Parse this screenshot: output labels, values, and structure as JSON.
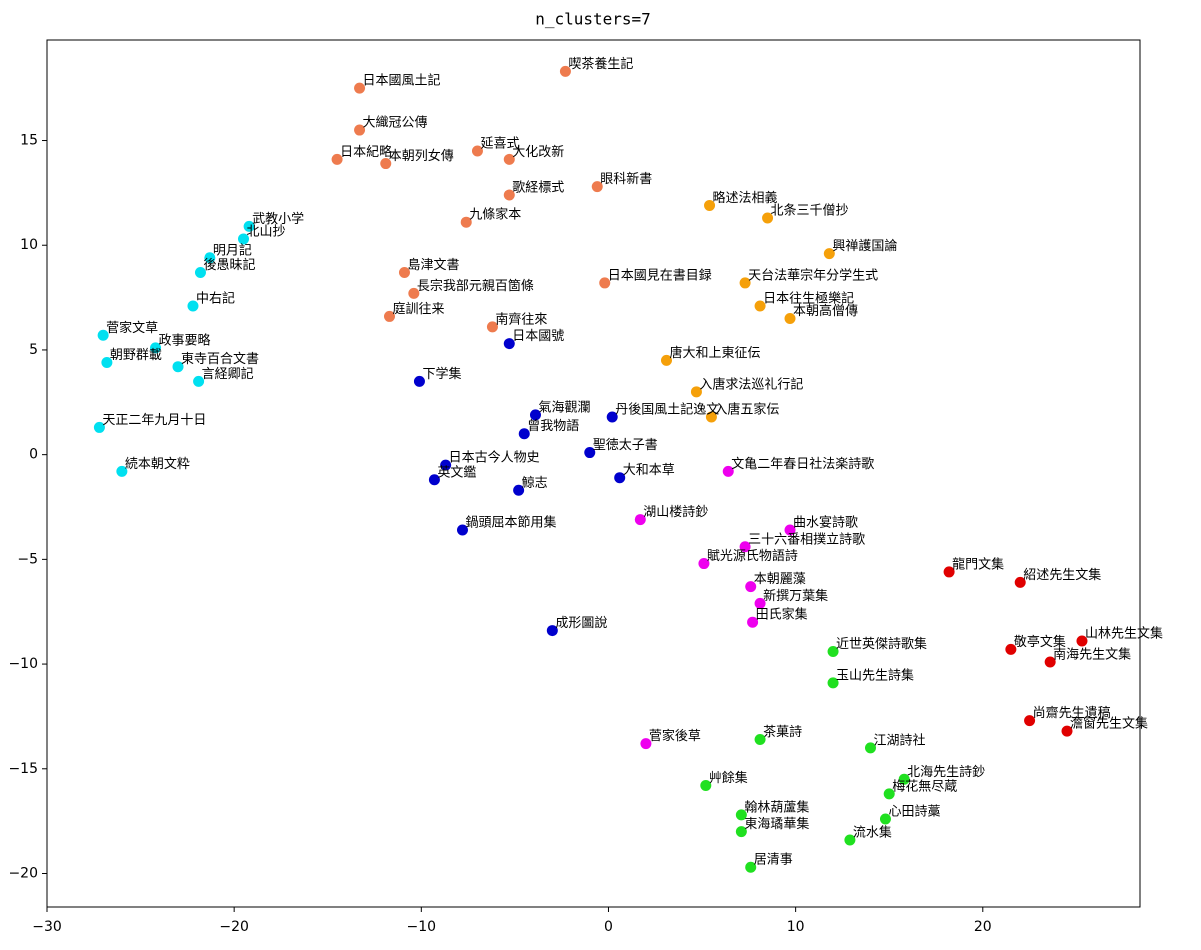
{
  "chart_data": {
    "type": "scatter",
    "title": "n_clusters=7",
    "xlim": [
      -30,
      28.4
    ],
    "ylim": [
      -21.6,
      19.8
    ],
    "xticks": [
      {
        "value": -30,
        "label": "−30"
      },
      {
        "value": -20,
        "label": "−20"
      },
      {
        "value": -10,
        "label": "−10"
      },
      0,
      10,
      20
    ],
    "yticks": [
      {
        "value": -20,
        "label": "−20"
      },
      {
        "value": -15,
        "label": "−15"
      },
      {
        "value": -10,
        "label": "−10"
      },
      {
        "value": -5,
        "label": "−5"
      },
      0,
      5,
      10,
      15
    ],
    "series": [
      {
        "color": "#00e0f0",
        "labels": [
          "武教小学",
          "北山抄",
          "明月記",
          "後愚昧記",
          "中右記",
          "菅家文草",
          "政事要略",
          "朝野群載",
          "言経卿記",
          "東寺百合文書",
          "天正二年九月十日",
          "続本朝文粋"
        ],
        "x": [
          -19.2,
          -19.5,
          -21.3,
          -21.8,
          -22.2,
          -27.0,
          -24.2,
          -26.8,
          -21.9,
          -23.0,
          -27.2,
          -26.0
        ],
        "y": [
          10.9,
          10.3,
          9.4,
          8.7,
          7.1,
          5.7,
          5.1,
          4.4,
          3.5,
          4.2,
          1.3,
          -0.8
        ]
      },
      {
        "color": "#ee7b4e",
        "labels": [
          "日本國風土記",
          "大織冠公傳",
          "日本紀略",
          "本朝列女傳",
          "延喜式",
          "喫茶養生記",
          "大化改新",
          "眼科新書",
          "歌経標式",
          "九條家本",
          "島津文書",
          "長宗我部元親百箇條",
          "南齊往來",
          "日本國見在書目録",
          "庭訓往来"
        ],
        "x": [
          -13.3,
          -13.3,
          -14.5,
          -11.9,
          -7.0,
          -2.3,
          -5.3,
          -0.6,
          -5.3,
          -7.6,
          -10.9,
          -10.4,
          -6.2,
          -0.2,
          -11.7
        ],
        "y": [
          17.5,
          15.5,
          14.1,
          13.9,
          14.5,
          18.3,
          14.1,
          12.8,
          12.4,
          11.1,
          8.7,
          7.7,
          6.1,
          8.2,
          6.6
        ]
      },
      {
        "color": "#f5a00a",
        "labels": [
          "略述法相義",
          "天台法華宗年分学生式",
          "興禅護国論",
          "日本往生極樂記",
          "本朝高僧傳",
          "唐大和上東征伝",
          "入唐求法巡礼行記",
          "入唐五家伝",
          "北条三千僧抄"
        ],
        "x": [
          5.4,
          7.3,
          11.8,
          8.1,
          9.7,
          3.1,
          4.7,
          5.5,
          8.5
        ],
        "y": [
          11.9,
          8.2,
          9.6,
          7.1,
          6.5,
          4.5,
          3.0,
          1.8,
          11.3
        ]
      },
      {
        "color": "#0000cd",
        "labels": [
          "氣海觀瀾",
          "丹後国風土記逸文",
          "曾我物語",
          "日本古今人物史",
          "大和本草",
          "鯨志",
          "英文鑑",
          "鍋頭屈本節用集",
          "成形圖說",
          "日本國號",
          "聖徳太子書",
          "下学集"
        ],
        "x": [
          -3.9,
          0.2,
          -4.5,
          -8.7,
          0.6,
          -4.8,
          -9.3,
          -7.8,
          -3.0,
          -5.3,
          -1.0,
          -10.1
        ],
        "y": [
          1.9,
          1.8,
          1.0,
          -0.5,
          -1.1,
          -1.7,
          -1.2,
          -3.6,
          -8.4,
          5.3,
          0.1,
          3.5
        ]
      },
      {
        "color": "#ee00ee",
        "labels": [
          "文亀二年春日社法楽詩歌",
          "湖山楼詩鈔",
          "曲水宴詩歌",
          "三十六番相撲立詩歌",
          "賦光源氏物語詩",
          "新撰万葉集",
          "田氏家集",
          "本朝麗藻",
          "菅家後草"
        ],
        "x": [
          6.4,
          1.7,
          9.7,
          7.3,
          5.1,
          8.1,
          7.7,
          7.6,
          2.0
        ],
        "y": [
          -0.8,
          -3.1,
          -3.6,
          -4.4,
          -5.2,
          -7.1,
          -8.0,
          -6.3,
          -13.8
        ]
      },
      {
        "color": "#e00000",
        "labels": [
          "龍門文集",
          "紹述先生文集",
          "山林先生文集",
          "敬亭文集",
          "尚齋先生遺稿",
          "澹窗先生文集",
          "南海先生文集"
        ],
        "x": [
          18.2,
          22.0,
          25.3,
          21.5,
          22.5,
          24.5,
          23.6
        ],
        "y": [
          -5.6,
          -6.1,
          -8.9,
          -9.3,
          -12.7,
          -13.2,
          -9.9
        ]
      },
      {
        "color": "#20e020",
        "labels": [
          "近世英傑詩歌集",
          "玉山先生詩集",
          "茶菓詩",
          "北海先生詩鈔",
          "艸餘集",
          "翰林葫蘆集",
          "心田詩藁",
          "流水集",
          "東海璚華集",
          "居清事",
          "江湖詩社",
          "梅花無尽蔵"
        ],
        "x": [
          12.0,
          12.0,
          8.1,
          15.8,
          5.2,
          7.1,
          14.8,
          12.9,
          7.1,
          7.6,
          14.0,
          15.0
        ],
        "y": [
          -9.4,
          -10.9,
          -13.6,
          -15.5,
          -15.8,
          -17.2,
          -17.4,
          -18.4,
          -18.0,
          -19.7,
          -14.0,
          -16.2
        ]
      }
    ]
  }
}
